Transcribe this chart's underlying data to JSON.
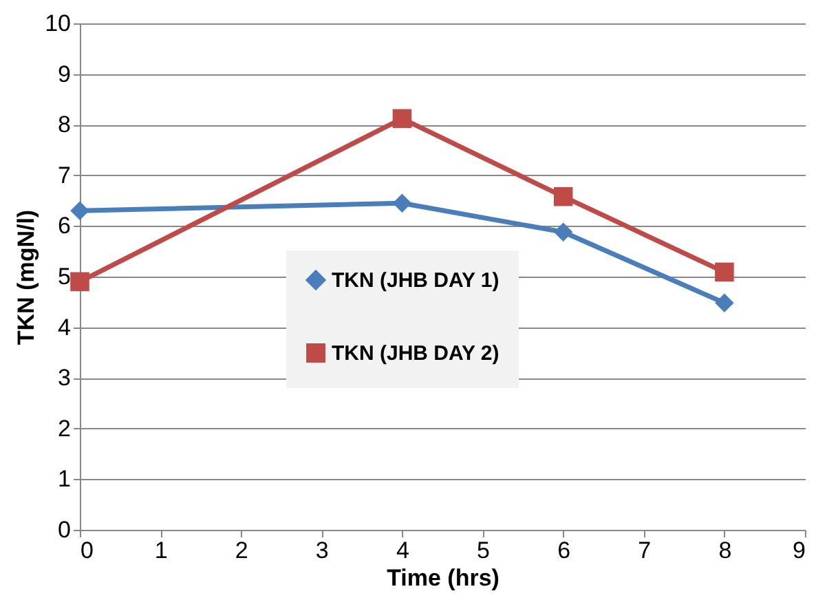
{
  "chart_data": {
    "type": "line",
    "xlabel": "Time (hrs)",
    "ylabel": "TKN (mgN/l)",
    "x": [
      0,
      4,
      6,
      8
    ],
    "series": [
      {
        "name": "TKN (JHB DAY 1)",
        "color": "#4a7ebb",
        "marker": "diamond",
        "values": [
          6.3,
          6.45,
          5.88,
          4.48
        ]
      },
      {
        "name": "TKN (JHB DAY 2)",
        "color": "#be4b48",
        "marker": "square",
        "values": [
          4.9,
          8.12,
          6.58,
          5.09
        ]
      }
    ],
    "xlim": [
      0,
      9
    ],
    "xticks": [
      0,
      1,
      2,
      3,
      4,
      5,
      6,
      7,
      8,
      9
    ],
    "ylim": [
      0,
      10
    ],
    "yticks": [
      0,
      1,
      2,
      3,
      4,
      5,
      6,
      7,
      8,
      9,
      10
    ],
    "grid": "y",
    "legend": "bottom",
    "line_style": "solid"
  }
}
